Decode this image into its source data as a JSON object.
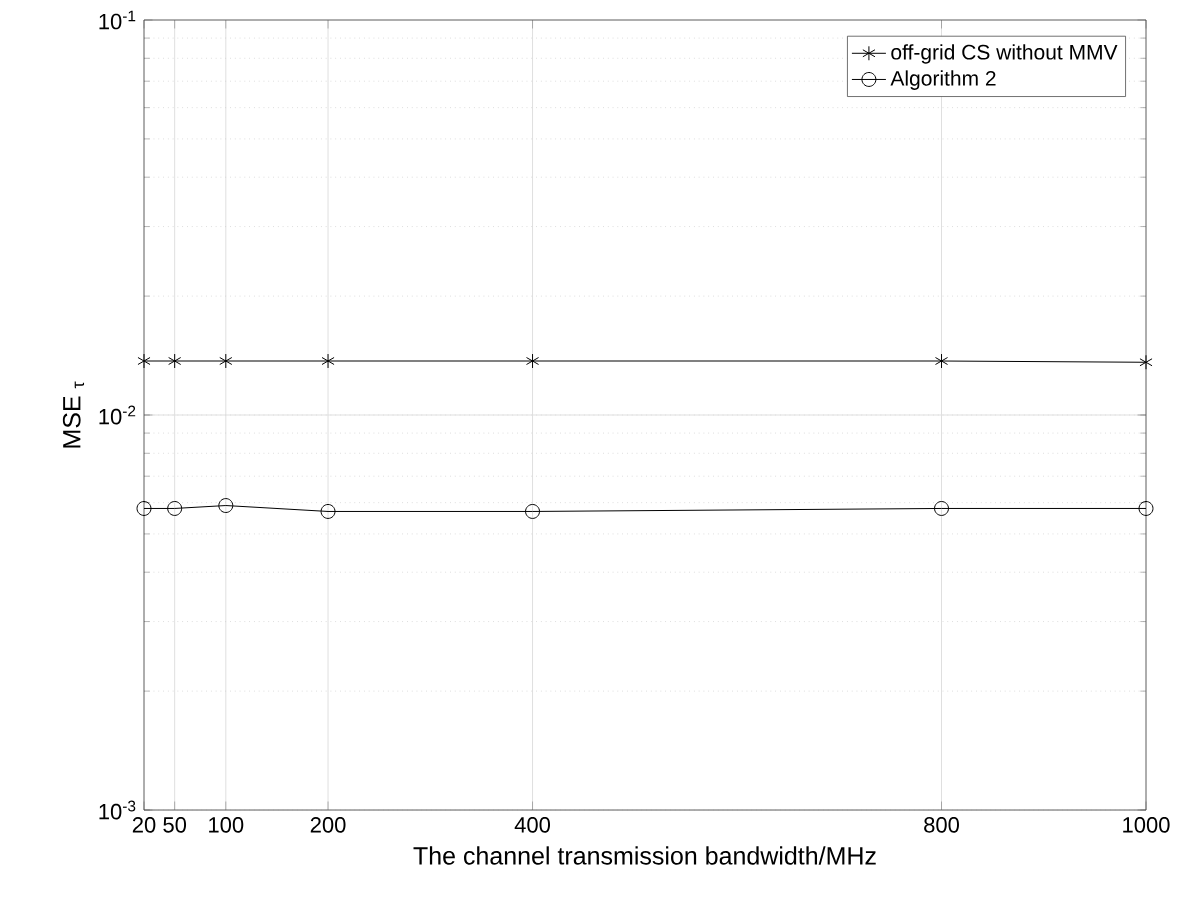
{
  "chart_data": {
    "type": "line",
    "xlabel": "The channel transmission bandwidth/MHz",
    "ylabel": "MSE $_{τ}$",
    "x": [
      20,
      50,
      100,
      200,
      400,
      800,
      1000
    ],
    "series": [
      {
        "name": "off-grid CS without MMV",
        "color": "#000000",
        "marker": "cross",
        "values": [
          0.0137,
          0.0137,
          0.0137,
          0.0137,
          0.0137,
          0.0137,
          0.0136
        ]
      },
      {
        "name": "Algorithm 2",
        "color": "#000000",
        "marker": "circle",
        "values": [
          0.0058,
          0.0058,
          0.0059,
          0.0057,
          0.0057,
          0.0058,
          0.0058
        ]
      }
    ],
    "xlim": [
      20,
      1000
    ],
    "xticks": [
      20,
      50,
      100,
      200,
      400,
      800,
      1000
    ],
    "ylim": [
      0.001,
      0.1
    ],
    "yticks": [
      {
        "value": 0.001,
        "label": "10$^{-3}$"
      },
      {
        "value": 0.01,
        "label": "10$^{-2}$"
      },
      {
        "value": 0.1,
        "label": "10$^{-1}$"
      }
    ],
    "log": "y",
    "grid": true,
    "legend": "top right",
    "line_style": "solid"
  }
}
